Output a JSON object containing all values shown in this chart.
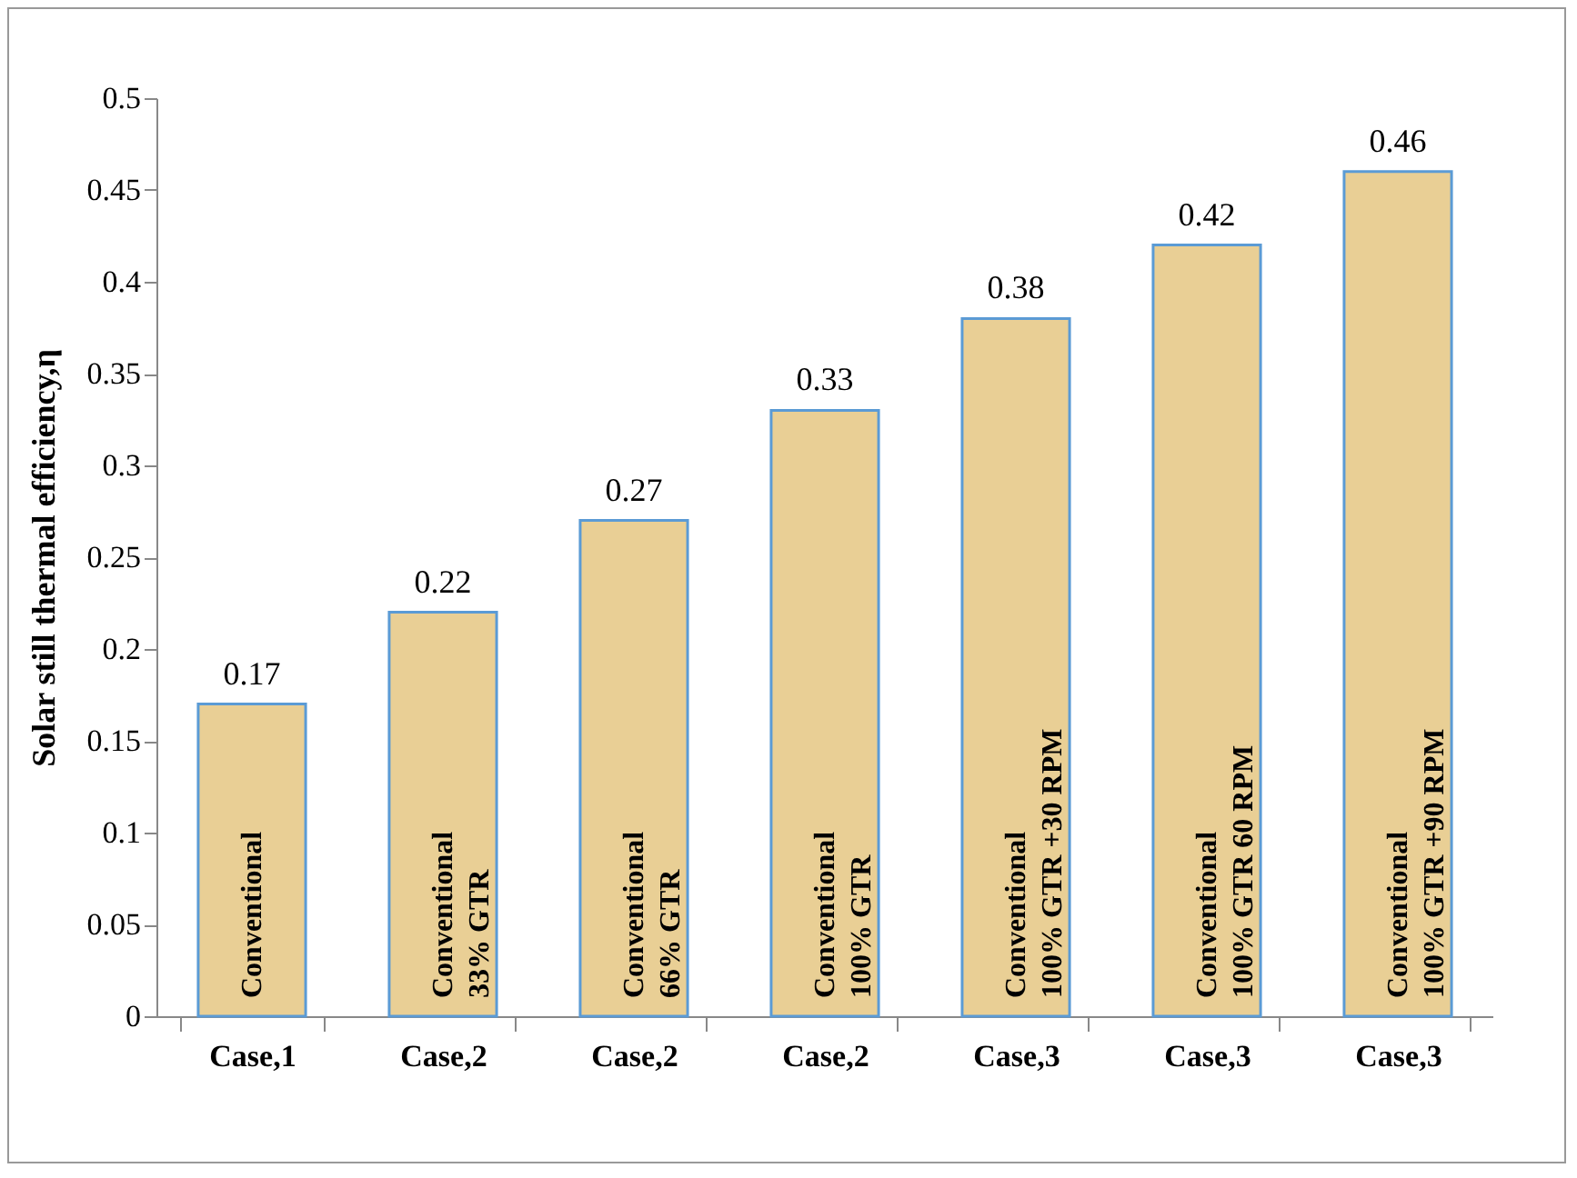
{
  "chart_data": {
    "type": "bar",
    "ylabel": "Solar still thermal efficiency,η",
    "categories": [
      "Case,1",
      "Case,2",
      "Case,2",
      "Case,2",
      "Case,3",
      "Case,3",
      "Case,3"
    ],
    "values": [
      0.17,
      0.22,
      0.27,
      0.33,
      0.38,
      0.42,
      0.46
    ],
    "color": "#e9cf95",
    "ylim": [
      0,
      0.5
    ],
    "yticks": [
      0,
      0.05,
      0.1,
      0.15,
      0.2,
      0.25,
      0.3,
      0.35,
      0.4,
      0.45,
      0.5
    ],
    "grid": false,
    "data_labels": true,
    "annotations": [
      "Conventional",
      "Conventional\n33% GTR",
      "Conventional\n66% GTR",
      "Conventional\n100% GTR",
      "Conventional\n100% GTR +30 RPM",
      "Conventional\n100% GTR 60 RPM",
      "Conventional\n100% GTR +90 RPM"
    ]
  }
}
